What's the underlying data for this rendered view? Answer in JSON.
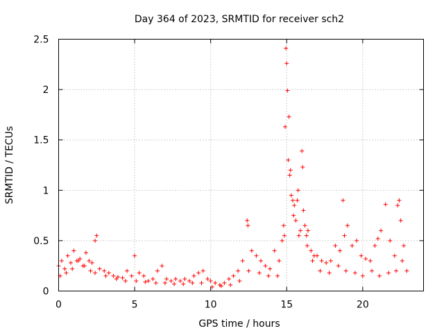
{
  "chart_data": {
    "type": "scatter",
    "title": "Day 364 of 2023, SRMTID for receiver sch2",
    "xlabel": "GPS time / hours",
    "ylabel": "SRMTID / TECUs",
    "xlim": [
      0,
      24
    ],
    "ylim": [
      0,
      2.5
    ],
    "xticks": [
      0,
      5,
      10,
      15,
      20
    ],
    "xtick_labels": [
      "0",
      "5",
      "10",
      "15",
      "20"
    ],
    "yticks": [
      0,
      0.5,
      1,
      1.5,
      2,
      2.5
    ],
    "ytick_labels": [
      "0",
      "0.5",
      "1",
      "1.5",
      "2",
      "2.5"
    ],
    "grid": true,
    "marker": "+",
    "series": [
      {
        "name": "SRMTID",
        "color": "#ff0000",
        "x": [
          0.0,
          0.2,
          0.4,
          0.6,
          0.8,
          1.0,
          1.2,
          1.4,
          1.6,
          1.8,
          2.0,
          2.2,
          2.4,
          2.5,
          2.7,
          3.0,
          3.3,
          3.6,
          3.9,
          4.2,
          4.5,
          4.8,
          5.0,
          5.3,
          5.6,
          5.9,
          6.2,
          6.5,
          6.8,
          7.1,
          7.4,
          7.7,
          8.0,
          8.3,
          8.6,
          8.9,
          9.2,
          9.5,
          9.8,
          10.0,
          10.3,
          10.6,
          10.9,
          11.2,
          11.5,
          11.8,
          12.1,
          12.4,
          12.45,
          12.7,
          13.0,
          13.3,
          13.6,
          13.9,
          14.2,
          14.5,
          14.7,
          14.8,
          14.9,
          14.95,
          15.0,
          15.05,
          15.1,
          15.15,
          15.2,
          15.3,
          15.4,
          15.5,
          15.6,
          15.7,
          15.8,
          15.9,
          16.0,
          16.1,
          16.2,
          16.3,
          16.4,
          16.6,
          16.8,
          17.0,
          17.3,
          17.6,
          17.9,
          18.2,
          18.5,
          18.7,
          18.8,
          19.0,
          19.3,
          19.6,
          19.9,
          20.2,
          20.5,
          20.8,
          21.0,
          21.2,
          21.5,
          21.8,
          22.1,
          22.3,
          22.4,
          22.5,
          22.7,
          22.9,
          0.1,
          0.5,
          0.9,
          1.3,
          1.7,
          2.1,
          2.4,
          3.1,
          3.8,
          4.4,
          5.1,
          5.7,
          6.4,
          7.0,
          7.6,
          8.2,
          8.8,
          9.4,
          10.1,
          10.7,
          11.3,
          11.9,
          12.5,
          13.2,
          13.8,
          14.4,
          14.85,
          15.25,
          15.45,
          15.75,
          16.05,
          16.35,
          16.7,
          17.2,
          17.8,
          18.4,
          18.9,
          19.5,
          20.0,
          20.6,
          21.1,
          21.7,
          22.2,
          22.6
        ],
        "values": [
          0.25,
          0.3,
          0.22,
          0.35,
          0.28,
          0.4,
          0.3,
          0.32,
          0.25,
          0.38,
          0.3,
          0.28,
          0.5,
          0.55,
          0.22,
          0.2,
          0.18,
          0.15,
          0.14,
          0.13,
          0.2,
          0.15,
          0.35,
          0.18,
          0.15,
          0.1,
          0.12,
          0.2,
          0.25,
          0.12,
          0.1,
          0.12,
          0.1,
          0.12,
          0.1,
          0.15,
          0.18,
          0.2,
          0.12,
          0.1,
          0.08,
          0.06,
          0.08,
          0.12,
          0.15,
          0.2,
          0.3,
          0.7,
          0.65,
          0.4,
          0.35,
          0.3,
          0.25,
          0.22,
          0.4,
          0.3,
          0.5,
          0.65,
          1.63,
          2.41,
          2.26,
          1.99,
          1.3,
          1.73,
          1.15,
          0.95,
          0.9,
          0.85,
          0.7,
          0.9,
          0.55,
          0.6,
          1.39,
          0.8,
          0.65,
          0.55,
          0.6,
          0.4,
          0.35,
          0.35,
          0.3,
          0.28,
          0.3,
          0.45,
          0.4,
          0.9,
          0.55,
          0.65,
          0.45,
          0.5,
          0.35,
          0.32,
          0.3,
          0.45,
          0.52,
          0.6,
          0.86,
          0.5,
          0.35,
          0.85,
          0.9,
          0.7,
          0.45,
          0.2,
          0.15,
          0.18,
          0.22,
          0.3,
          0.25,
          0.2,
          0.18,
          0.15,
          0.12,
          0.1,
          0.1,
          0.09,
          0.08,
          0.08,
          0.07,
          0.07,
          0.08,
          0.08,
          0.04,
          0.05,
          0.06,
          0.1,
          0.2,
          0.18,
          0.15,
          0.15,
          0.55,
          1.2,
          0.75,
          1.0,
          1.23,
          0.45,
          0.3,
          0.2,
          0.18,
          0.25,
          0.2,
          0.18,
          0.15,
          0.2,
          0.15,
          0.18,
          0.2,
          0.3
        ]
      }
    ]
  }
}
